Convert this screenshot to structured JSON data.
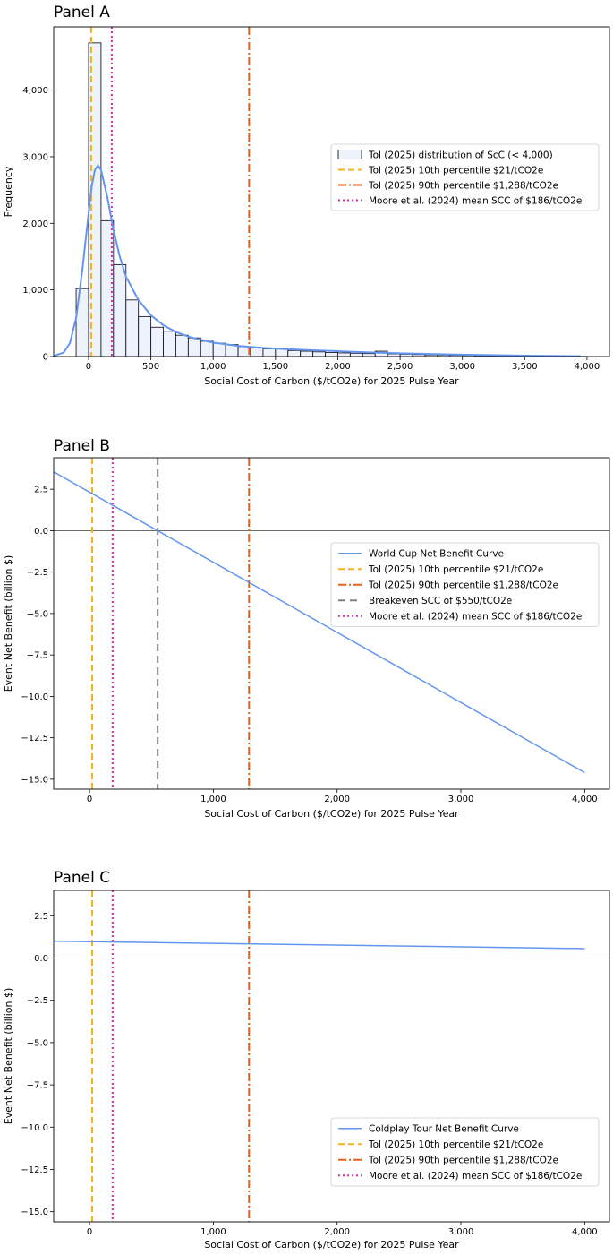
{
  "colors": {
    "curve": "#6495ED",
    "p10": "#F2B31C",
    "p90": "#E8601C",
    "moore": "#D62AAE",
    "breakeven": "#808080",
    "hist_fill": "#EEF2FA",
    "hist_edge": "#1a1a2e",
    "zero_line": "#555555"
  },
  "chart_data": [
    {
      "id": "panelA",
      "type": "bar",
      "title": "Panel A",
      "xlabel": "Social Cost of Carbon ($/tCO2e) for 2025 Pulse Year",
      "ylabel": "Frequency",
      "xlim": [
        -280,
        4180
      ],
      "ylim": [
        0,
        4950
      ],
      "xticks": [
        0,
        500,
        1000,
        1500,
        2000,
        2500,
        3000,
        3500,
        4000
      ],
      "xtick_labels": [
        "0",
        "500",
        "1,000",
        "1,500",
        "2,000",
        "2,500",
        "3,000",
        "3,500",
        "4,000"
      ],
      "yticks": [
        0,
        1000,
        2000,
        3000,
        4000
      ],
      "ytick_labels": [
        "0",
        "1,000",
        "2,000",
        "3,000",
        "4,000"
      ],
      "bin_start": -100,
      "bin_width": 100,
      "values": [
        1020,
        4710,
        2040,
        1380,
        850,
        600,
        440,
        380,
        320,
        280,
        230,
        200,
        180,
        150,
        130,
        115,
        120,
        90,
        80,
        70,
        60,
        55,
        50,
        45,
        80,
        40,
        35,
        30,
        25,
        22,
        20,
        18,
        15,
        12,
        10,
        8,
        6,
        5,
        4,
        3,
        2
      ],
      "kde": {
        "x": [
          -280,
          -200,
          -150,
          -100,
          -50,
          0,
          25,
          50,
          75,
          100,
          150,
          200,
          250,
          300,
          400,
          500,
          600,
          700,
          800,
          900,
          1000,
          1200,
          1400,
          1600,
          1800,
          2000,
          2200,
          2500,
          3000,
          3500,
          3950
        ],
        "y": [
          10,
          60,
          200,
          580,
          1300,
          2150,
          2550,
          2800,
          2870,
          2800,
          2400,
          1900,
          1500,
          1200,
          850,
          620,
          470,
          370,
          300,
          250,
          210,
          160,
          130,
          110,
          95,
          80,
          65,
          48,
          28,
          14,
          5
        ]
      },
      "vlines": [
        {
          "name": "p10",
          "x": 21,
          "style": "dashed"
        },
        {
          "name": "moore",
          "x": 186,
          "style": "dotted"
        },
        {
          "name": "p90",
          "x": 1288,
          "style": "dashdot"
        }
      ],
      "legend": {
        "position": "center-right",
        "entries": [
          {
            "kind": "patch",
            "label": "Tol (2025) distribution of ScC (< 4,000)"
          },
          {
            "kind": "p10",
            "label": "Tol (2025) 10th percentile $21/tCO2e"
          },
          {
            "kind": "p90",
            "label": "Tol (2025) 90th percentile $1,288/tCO2e"
          },
          {
            "kind": "moore",
            "label": "Moore et al. (2024) mean SCC of $186/tCO2e"
          }
        ]
      }
    },
    {
      "id": "panelB",
      "type": "line",
      "title": "Panel B",
      "xlabel": "Social Cost of Carbon ($/tCO2e) for 2025 Pulse Year",
      "ylabel": "Event Net Benefit (billion $)",
      "xlim": [
        -290,
        4200
      ],
      "ylim": [
        -15.6,
        4.4
      ],
      "xticks": [
        0,
        1000,
        2000,
        3000,
        4000
      ],
      "xtick_labels": [
        "0",
        "1,000",
        "2,000",
        "3,000",
        "4,000"
      ],
      "yticks": [
        2.5,
        0,
        -2.5,
        -5,
        -7.5,
        -10,
        -12.5,
        -15
      ],
      "ytick_labels": [
        "2.5",
        "0.0",
        "−2.5",
        "−5.0",
        "−7.5",
        "−10.0",
        "−12.5",
        "−15.0"
      ],
      "series": [
        {
          "name": "World Cup Net Benefit Curve",
          "x": [
            -290,
            4000
          ],
          "y": [
            3.55,
            -14.6
          ]
        }
      ],
      "zero_line": 0,
      "vlines": [
        {
          "name": "p10",
          "x": 21,
          "style": "dashed"
        },
        {
          "name": "moore",
          "x": 186,
          "style": "dotted"
        },
        {
          "name": "breakeven",
          "x": 550,
          "style": "dashed"
        },
        {
          "name": "p90",
          "x": 1288,
          "style": "dashdot"
        }
      ],
      "legend": {
        "position": "center-right",
        "entries": [
          {
            "kind": "curve",
            "label": "World Cup Net Benefit Curve"
          },
          {
            "kind": "p10",
            "label": "Tol (2025) 10th percentile $21/tCO2e"
          },
          {
            "kind": "p90",
            "label": "Tol (2025) 90th percentile $1,288/tCO2e"
          },
          {
            "kind": "breakeven",
            "label": "Breakeven SCC of $550/tCO2e"
          },
          {
            "kind": "moore",
            "label": "Moore et al. (2024) mean SCC of $186/tCO2e"
          }
        ]
      }
    },
    {
      "id": "panelC",
      "type": "line",
      "title": "Panel C",
      "xlabel": "Social Cost of Carbon ($/tCO2e) for 2025 Pulse Year",
      "ylabel": "Event Net Benefit (billion $)",
      "xlim": [
        -290,
        4200
      ],
      "ylim": [
        -15.6,
        4.0
      ],
      "xticks": [
        0,
        1000,
        2000,
        3000,
        4000
      ],
      "xtick_labels": [
        "0",
        "1,000",
        "2,000",
        "3,000",
        "4,000"
      ],
      "yticks": [
        2.5,
        0,
        -2.5,
        -5,
        -7.5,
        -10,
        -12.5,
        -15
      ],
      "ytick_labels": [
        "2.5",
        "0.0",
        "−2.5",
        "−5.0",
        "−7.5",
        "−10.0",
        "−12.5",
        "−15.0"
      ],
      "series": [
        {
          "name": "Coldplay Tour Net Benefit Curve",
          "x": [
            -290,
            4000
          ],
          "y": [
            1.0,
            0.56
          ]
        }
      ],
      "zero_line": 0,
      "vlines": [
        {
          "name": "p10",
          "x": 21,
          "style": "dashed"
        },
        {
          "name": "moore",
          "x": 186,
          "style": "dotted"
        },
        {
          "name": "p90",
          "x": 1288,
          "style": "dashdot"
        }
      ],
      "legend": {
        "position": "lower-right",
        "entries": [
          {
            "kind": "curve",
            "label": "Coldplay Tour Net Benefit Curve"
          },
          {
            "kind": "p10",
            "label": "Tol (2025) 10th percentile $21/tCO2e"
          },
          {
            "kind": "p90",
            "label": "Tol (2025) 90th percentile $1,288/tCO2e"
          },
          {
            "kind": "moore",
            "label": "Moore et al. (2024) mean SCC of $186/tCO2e"
          }
        ]
      }
    }
  ]
}
